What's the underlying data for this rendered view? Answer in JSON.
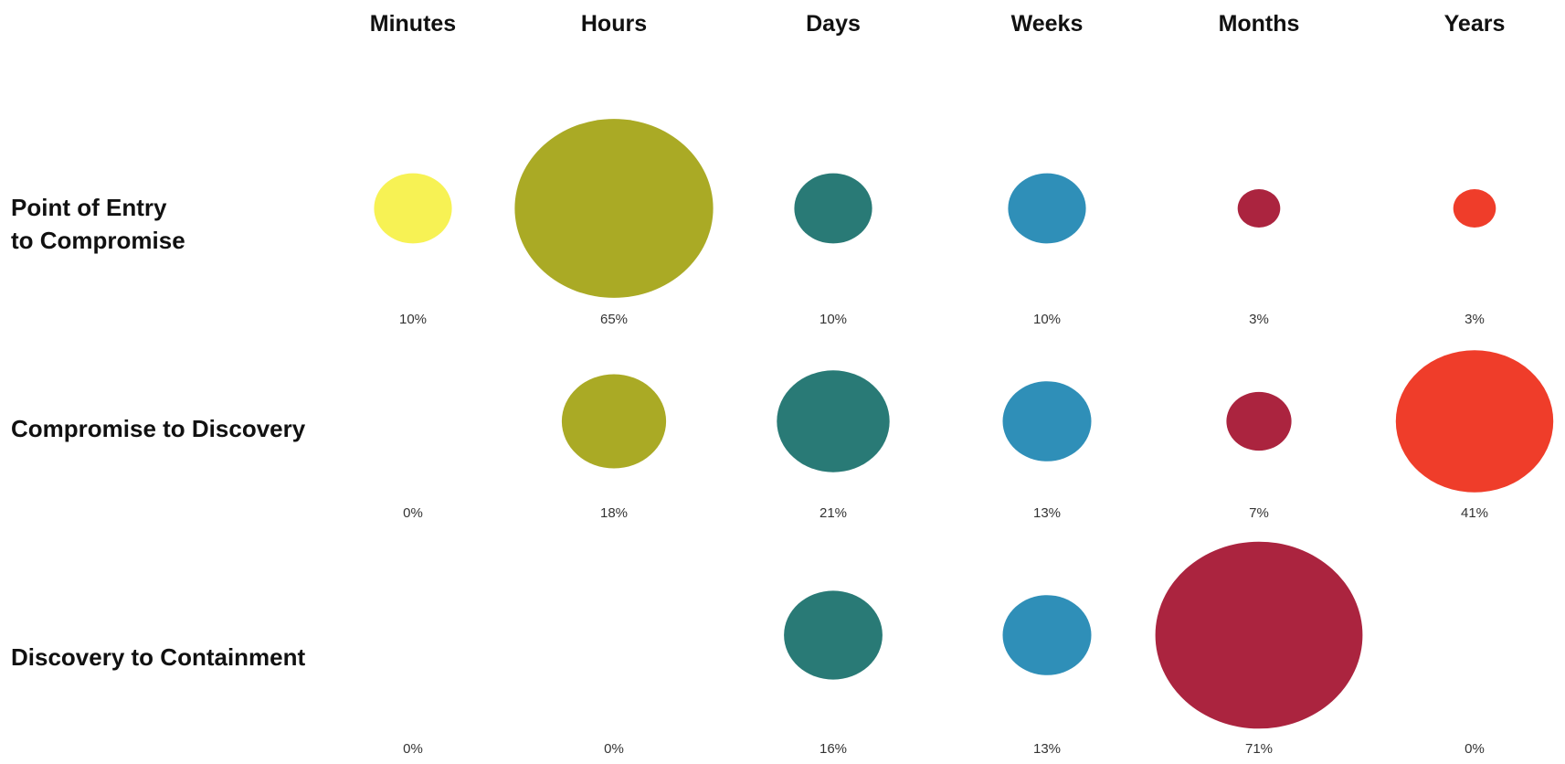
{
  "chart_data": {
    "type": "bubble-matrix",
    "columns": [
      "Minutes",
      "Hours",
      "Days",
      "Weeks",
      "Months",
      "Years"
    ],
    "rows": [
      {
        "label_lines": [
          "Point of Entry",
          "to Compromise"
        ],
        "values": [
          10,
          65,
          10,
          10,
          3,
          3
        ],
        "labels": [
          "10%",
          "65%",
          "10%",
          "10%",
          "3%",
          "3%"
        ]
      },
      {
        "label_lines": [
          "Compromise to Discovery"
        ],
        "values": [
          0,
          18,
          21,
          13,
          7,
          41
        ],
        "labels": [
          "0%",
          "18%",
          "21%",
          "13%",
          "7%",
          "41%"
        ]
      },
      {
        "label_lines": [
          "Discovery to Containment"
        ],
        "values": [
          0,
          0,
          16,
          13,
          71,
          0
        ],
        "labels": [
          "0%",
          "0%",
          "16%",
          "13%",
          "71%",
          "0%"
        ]
      }
    ],
    "colors": [
      "#f7f254",
      "#aaaa25",
      "#297a76",
      "#2f8fb8",
      "#ab243f",
      "#ef3d2a"
    ],
    "value_unit": "percent"
  }
}
